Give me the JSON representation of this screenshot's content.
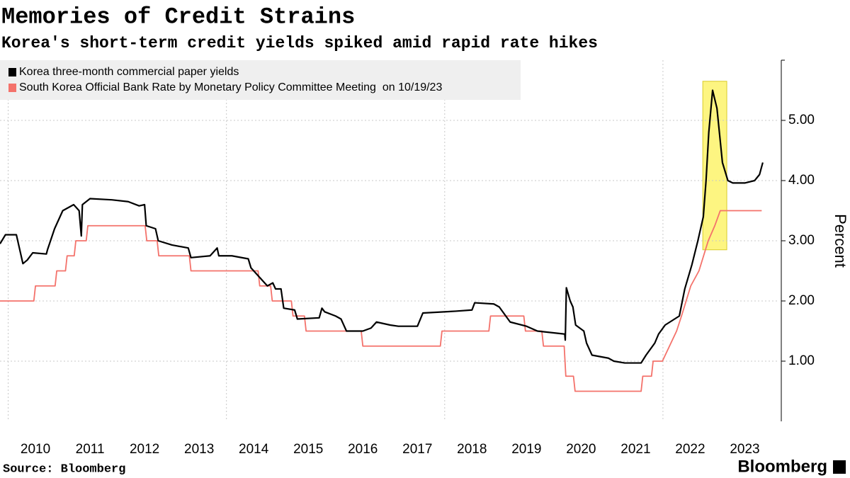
{
  "chart_data": {
    "type": "line",
    "title": "Memories of Credit Strains",
    "subtitle": "Korea's short-term credit yields spiked amid rapid rate hikes",
    "y_label": "Percent",
    "source": "Source: Bloomberg",
    "brand": "Bloomberg",
    "xlim": [
      2009.85,
      2024.13
    ],
    "ylim": [
      0,
      6
    ],
    "xticks": [
      {
        "value": 2010.5,
        "label": "2010"
      },
      {
        "value": 2011.5,
        "label": "2011"
      },
      {
        "value": 2012.5,
        "label": "2012"
      },
      {
        "value": 2013.5,
        "label": "2013"
      },
      {
        "value": 2014.5,
        "label": "2014"
      },
      {
        "value": 2015.5,
        "label": "2015"
      },
      {
        "value": 2016.5,
        "label": "2016"
      },
      {
        "value": 2017.5,
        "label": "2017"
      },
      {
        "value": 2018.5,
        "label": "2018"
      },
      {
        "value": 2019.5,
        "label": "2019"
      },
      {
        "value": 2020.5,
        "label": "2020"
      },
      {
        "value": 2021.5,
        "label": "2021"
      },
      {
        "value": 2022.5,
        "label": "2022"
      },
      {
        "value": 2023.5,
        "label": "2023"
      }
    ],
    "xgrid": [
      2010,
      2014,
      2018,
      2022
    ],
    "yticks": [
      {
        "value": 1,
        "label": "1.00"
      },
      {
        "value": 2,
        "label": "2.00"
      },
      {
        "value": 3,
        "label": "3.00"
      },
      {
        "value": 4,
        "label": "4.00"
      },
      {
        "value": 5,
        "label": "5.00"
      }
    ],
    "grid": true,
    "highlight": {
      "xlim": [
        2022.73,
        2023.17
      ],
      "ylim": [
        2.85,
        5.65
      ],
      "color": "#fdf36b"
    },
    "series": [
      {
        "name": "Korea three-month commercial paper yields",
        "color": "#000000",
        "x": [
          2009.85,
          2009.95,
          2010.15,
          2010.2,
          2010.27,
          2010.35,
          2010.45,
          2010.7,
          2010.72,
          2010.85,
          2011.0,
          2011.2,
          2011.3,
          2011.34,
          2011.36,
          2011.5,
          2011.9,
          2012.2,
          2012.4,
          2012.5,
          2012.53,
          2012.7,
          2012.75,
          2013.0,
          2013.3,
          2013.35,
          2013.7,
          2013.83,
          2013.86,
          2014.1,
          2014.4,
          2014.45,
          2014.6,
          2014.75,
          2014.85,
          2014.9,
          2015.0,
          2015.05,
          2015.25,
          2015.3,
          2015.7,
          2015.75,
          2015.8,
          2016.0,
          2016.1,
          2016.2,
          2016.5,
          2016.65,
          2016.75,
          2017.0,
          2017.15,
          2017.5,
          2017.6,
          2018.2,
          2018.5,
          2018.55,
          2018.9,
          2019.0,
          2019.08,
          2019.2,
          2019.5,
          2019.7,
          2020.2,
          2020.21,
          2020.23,
          2020.3,
          2020.35,
          2020.4,
          2020.55,
          2020.6,
          2020.7,
          2021.0,
          2021.1,
          2021.3,
          2021.6,
          2021.69,
          2021.85,
          2021.92,
          2022.04,
          2022.3,
          2022.4,
          2022.53,
          2022.64,
          2022.74,
          2022.79,
          2022.84,
          2022.91,
          2022.99,
          2023.09,
          2023.19,
          2023.28,
          2023.5,
          2023.68,
          2023.77,
          2023.83
        ],
        "values": [
          2.95,
          3.1,
          3.1,
          2.9,
          2.62,
          2.68,
          2.8,
          2.78,
          2.85,
          3.2,
          3.5,
          3.6,
          3.5,
          3.08,
          3.6,
          3.7,
          3.68,
          3.65,
          3.58,
          3.6,
          3.25,
          3.2,
          3.0,
          2.93,
          2.88,
          2.72,
          2.75,
          2.88,
          2.75,
          2.75,
          2.7,
          2.55,
          2.4,
          2.25,
          2.3,
          2.2,
          2.2,
          1.88,
          1.85,
          1.7,
          1.72,
          1.88,
          1.82,
          1.75,
          1.7,
          1.5,
          1.5,
          1.55,
          1.65,
          1.6,
          1.58,
          1.58,
          1.8,
          1.83,
          1.85,
          1.97,
          1.95,
          1.9,
          1.8,
          1.65,
          1.58,
          1.5,
          1.45,
          1.35,
          2.22,
          2.0,
          1.9,
          1.6,
          1.5,
          1.3,
          1.1,
          1.05,
          1.0,
          0.97,
          0.97,
          1.1,
          1.3,
          1.45,
          1.6,
          1.75,
          2.2,
          2.6,
          3.0,
          3.4,
          4.0,
          4.8,
          5.5,
          5.2,
          4.3,
          4.0,
          3.96,
          3.96,
          4.0,
          4.1,
          4.3
        ]
      },
      {
        "name": "South Korea Official Bank Rate by Monetary Policy Committee Meeting  on 10/19/23",
        "color": "#f4726b",
        "x": [
          2009.85,
          2010.47,
          2010.5,
          2010.86,
          2010.89,
          2011.05,
          2011.08,
          2011.21,
          2011.24,
          2011.43,
          2011.46,
          2012.51,
          2012.54,
          2012.73,
          2012.76,
          2013.32,
          2013.35,
          2014.58,
          2014.61,
          2014.81,
          2014.84,
          2015.19,
          2015.22,
          2015.43,
          2015.46,
          2016.47,
          2016.5,
          2017.92,
          2017.95,
          2018.81,
          2018.84,
          2019.45,
          2019.48,
          2019.78,
          2019.81,
          2020.19,
          2020.22,
          2020.36,
          2020.39,
          2021.6,
          2021.63,
          2021.79,
          2021.82,
          2021.99,
          2022.12,
          2022.25,
          2022.34,
          2022.51,
          2022.66,
          2022.83,
          2022.95,
          2023.05,
          2023.81
        ],
        "values": [
          2.0,
          2.0,
          2.25,
          2.25,
          2.5,
          2.5,
          2.75,
          2.75,
          3.0,
          3.0,
          3.25,
          3.25,
          3.0,
          3.0,
          2.75,
          2.75,
          2.5,
          2.5,
          2.25,
          2.25,
          2.0,
          2.0,
          1.75,
          1.75,
          1.5,
          1.5,
          1.25,
          1.25,
          1.5,
          1.5,
          1.75,
          1.75,
          1.5,
          1.5,
          1.25,
          1.25,
          0.75,
          0.75,
          0.5,
          0.5,
          0.75,
          0.75,
          1.0,
          1.0,
          1.25,
          1.5,
          1.75,
          2.25,
          2.5,
          3.0,
          3.25,
          3.5,
          3.5
        ]
      }
    ]
  }
}
